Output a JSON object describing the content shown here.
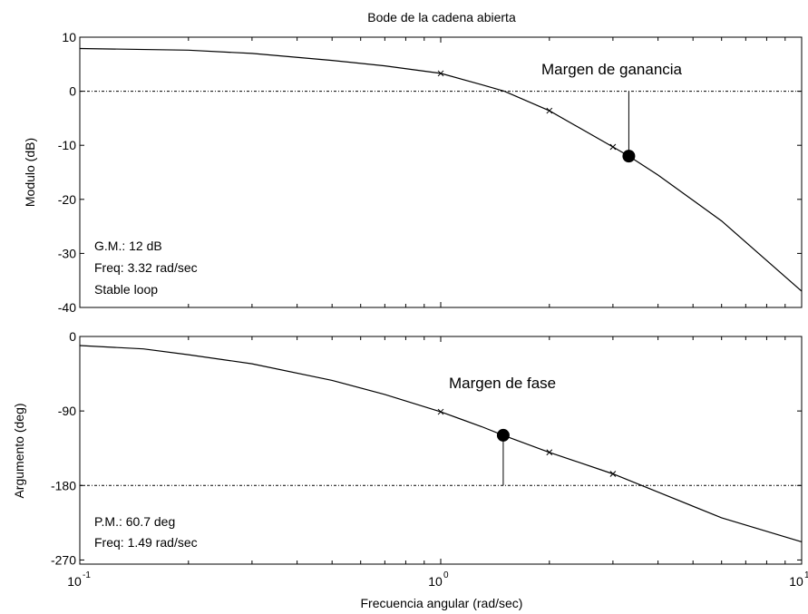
{
  "chart_data": [
    {
      "type": "line",
      "title": "Bode de la cadena abierta",
      "ylabel": "Modulo (dB)",
      "xscale": "log",
      "xlim": [
        0.1,
        10
      ],
      "ylim": [
        -40,
        10
      ],
      "yticks": [
        10,
        0,
        -10,
        -20,
        -30,
        -40
      ],
      "reference_y": 0,
      "series": [
        {
          "x": [
            0.1,
            0.2,
            0.3,
            0.5,
            0.7,
            1.0,
            1.3,
            1.5,
            2.0,
            3.0,
            3.32,
            4.0,
            6.0,
            10.0
          ],
          "y": [
            7.9,
            7.6,
            7.0,
            5.7,
            4.7,
            3.3,
            1.2,
            0.0,
            -3.6,
            -10.3,
            -12.0,
            -15.5,
            -24.0,
            -37.0
          ]
        }
      ],
      "markers_x": [
        {
          "x": 1.0,
          "y": 3.3
        },
        {
          "x": 2.0,
          "y": -3.6
        },
        {
          "x": 3.0,
          "y": -10.3
        }
      ],
      "margin_point": {
        "x": 3.32,
        "y": -12.0
      },
      "annotation": "Margen de ganancia",
      "info_lines": [
        "G.M.: 12 dB",
        "Freq: 3.32 rad/sec",
        "Stable loop"
      ]
    },
    {
      "type": "line",
      "ylabel": "Argumento (deg)",
      "xlabel": "Frecuencia angular (rad/sec)",
      "xscale": "log",
      "xlim": [
        0.1,
        10
      ],
      "ylim": [
        -275,
        0
      ],
      "yticks": [
        0,
        -90,
        -180,
        -270
      ],
      "xticks": [
        {
          "value": 0.1,
          "base": "10",
          "exp": "-1"
        },
        {
          "value": 1,
          "base": "10",
          "exp": "0"
        },
        {
          "value": 10,
          "base": "10",
          "exp": "1"
        }
      ],
      "reference_y": -180,
      "series": [
        {
          "x": [
            0.1,
            0.15,
            0.2,
            0.3,
            0.5,
            0.7,
            1.0,
            1.3,
            1.49,
            2.0,
            3.0,
            4.0,
            6.0,
            10.0
          ],
          "y": [
            -11,
            -15,
            -22,
            -33,
            -53,
            -70,
            -91,
            -109,
            -119.3,
            -140,
            -166,
            -188,
            -219,
            -248
          ]
        }
      ],
      "markers_x": [
        {
          "x": 1.0,
          "y": -91
        },
        {
          "x": 2.0,
          "y": -140
        },
        {
          "x": 3.0,
          "y": -166
        }
      ],
      "margin_point": {
        "x": 1.49,
        "y": -119.3
      },
      "annotation": "Margen de fase",
      "info_lines": [
        "P.M.: 60.7 deg",
        "Freq: 1.49 rad/sec"
      ]
    }
  ]
}
